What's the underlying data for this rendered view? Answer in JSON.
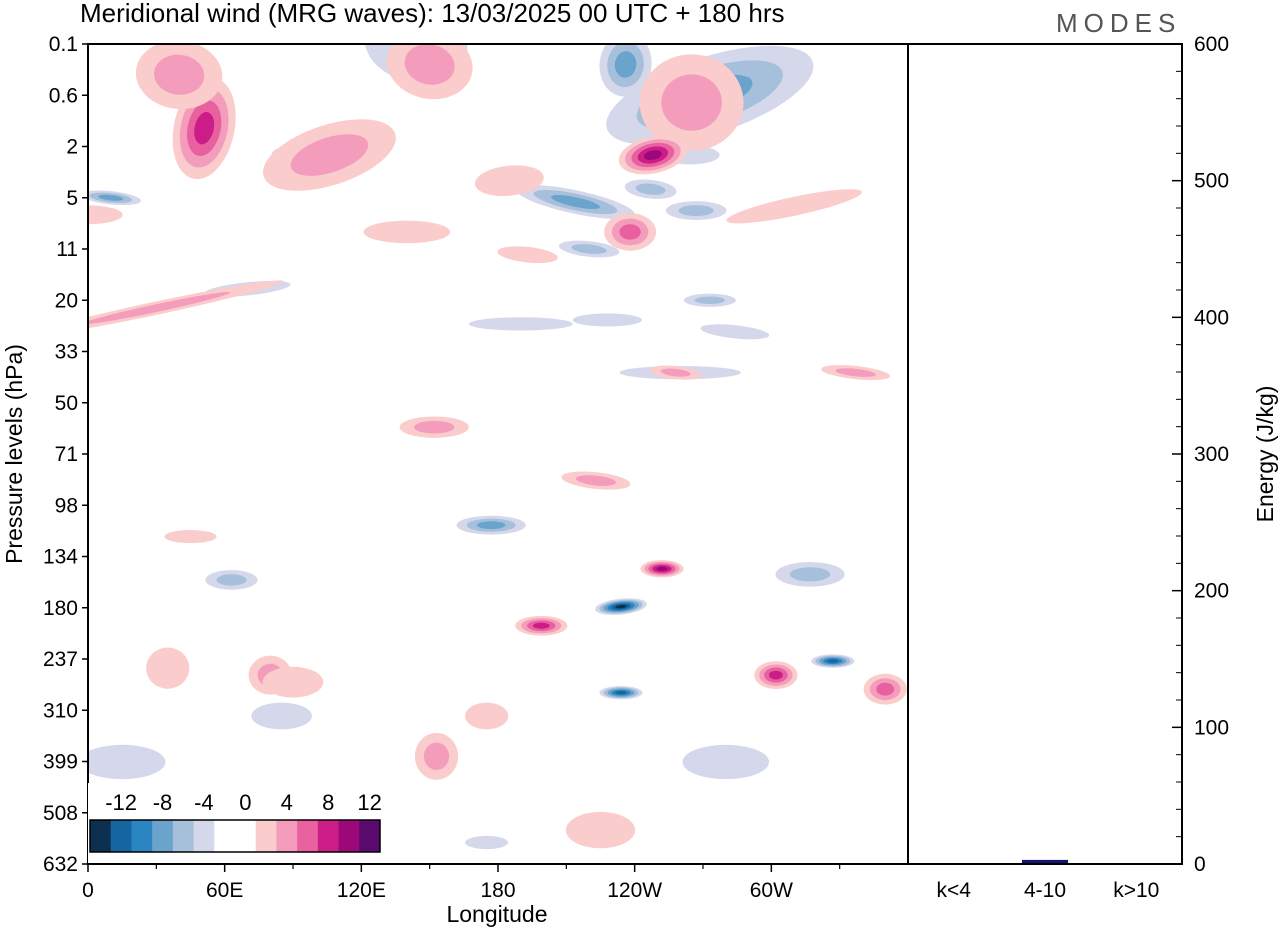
{
  "header": {
    "title": "Meridional wind (MRG waves):  13/03/2025  00 UTC  + 180 hrs",
    "brand": "MODES"
  },
  "colors": {
    "negative": [
      "#0d3050",
      "#1565a0",
      "#2a85c0",
      "#6aa3cc",
      "#a6c0dc",
      "#d5d8ea"
    ],
    "neutral": "#ffffff",
    "positive": [
      "#fbcccc",
      "#f49cbc",
      "#e8609e",
      "#cc1c88",
      "#9c087a",
      "#5a0a6e"
    ],
    "energy_bar": "#141470"
  },
  "chart_data": [
    {
      "type": "heatmap",
      "title": "Meridional wind (MRG waves):  13/03/2025  00 UTC  + 180 hrs",
      "xlabel": "Longitude",
      "ylabel": "Pressure levels (hPa)",
      "x_ticks": [
        "0",
        "60E",
        "120E",
        "180",
        "120W",
        "60W"
      ],
      "x_tick_degrees": [
        0,
        60,
        120,
        180,
        240,
        300
      ],
      "xlim": [
        0,
        360
      ],
      "y_ticks": [
        "0.1",
        "0.6",
        "2",
        "5",
        "11",
        "20",
        "33",
        "50",
        "71",
        "98",
        "134",
        "180",
        "237",
        "310",
        "399",
        "508",
        "632"
      ],
      "colorbar": {
        "labels": [
          "-12",
          "-8",
          "-4",
          "0",
          "4",
          "8",
          "12"
        ],
        "levels": [
          -14,
          -12,
          -10,
          -8,
          -6,
          -4,
          -2,
          2,
          4,
          6,
          8,
          10,
          12,
          14
        ]
      },
      "features": [
        {
          "sign": "neg",
          "level": 6,
          "lon": 273,
          "lev": 0.6,
          "dlon": 25,
          "dlev": 0.5,
          "tilt": -3
        },
        {
          "sign": "neg",
          "level": 6,
          "lon": 10,
          "lev": 5,
          "dlon": 7,
          "dlev": 0.4,
          "tilt": 1
        },
        {
          "sign": "neg",
          "level": 5,
          "lon": 236,
          "lev": 0.3,
          "dlon": 6,
          "dlev": 0.5,
          "tilt": 1
        },
        {
          "sign": "neg",
          "level": 3,
          "lon": 90,
          "lev": 2.5,
          "dlon": 5,
          "dlev": 0.5,
          "tilt": 0
        },
        {
          "sign": "neg",
          "level": 2,
          "lon": 144,
          "lev": 0.1,
          "dlon": 12,
          "dlev": 1,
          "tilt": 2
        },
        {
          "sign": "neg",
          "level": 5,
          "lon": 214,
          "lev": 5.5,
          "dlon": 14,
          "dlev": 1,
          "tilt": 2
        },
        {
          "sign": "neg",
          "level": 4,
          "lon": 247,
          "lev": 4.5,
          "dlon": 6,
          "dlev": 0.5,
          "tilt": 1
        },
        {
          "sign": "neg",
          "level": 4,
          "lon": 267,
          "lev": 6.5,
          "dlon": 7,
          "dlev": 1,
          "tilt": 0
        },
        {
          "sign": "neg",
          "level": 3,
          "lon": 220,
          "lev": 11,
          "dlon": 7,
          "dlev": 1,
          "tilt": 1
        },
        {
          "sign": "neg",
          "level": 1,
          "lon": 264,
          "lev": 2.5,
          "dlon": 7,
          "dlev": 0.5,
          "tilt": 0
        },
        {
          "sign": "neg",
          "level": 3,
          "lon": 273,
          "lev": 20,
          "dlon": 6,
          "dlev": 0.5,
          "tilt": 0
        },
        {
          "sign": "neg",
          "level": 2,
          "lon": 284,
          "lev": 28,
          "dlon": 8,
          "dlev": 0.7,
          "tilt": 1
        },
        {
          "sign": "neg",
          "level": 2,
          "lon": 228,
          "lev": 25,
          "dlon": 8,
          "dlev": 0.7,
          "tilt": 0
        },
        {
          "sign": "neg",
          "level": 1,
          "lon": 260,
          "lev": 40,
          "dlon": 14,
          "dlev": 2,
          "tilt": 0
        },
        {
          "sign": "neg",
          "level": 1,
          "lon": 190,
          "lev": 26,
          "dlon": 12,
          "dlev": 1,
          "tilt": 0
        },
        {
          "sign": "neg",
          "level": 1,
          "lon": 70,
          "lev": 18,
          "dlon": 10,
          "dlev": 1,
          "tilt": -1
        },
        {
          "sign": "neg",
          "level": 5,
          "lon": 177,
          "lev": 112,
          "dlon": 8,
          "dlev": 6,
          "tilt": 0
        },
        {
          "sign": "neg",
          "level": 12,
          "lon": 234,
          "lev": 179,
          "dlon": 6,
          "dlev": 7,
          "tilt": -1
        },
        {
          "sign": "neg",
          "level": 10,
          "lon": 234,
          "lev": 285,
          "dlon": 5,
          "dlev": 4,
          "tilt": 0
        },
        {
          "sign": "neg",
          "level": 10,
          "lon": 327,
          "lev": 240,
          "dlon": 5,
          "dlev": 8,
          "tilt": 0
        },
        {
          "sign": "neg",
          "level": 3,
          "lon": 317,
          "lev": 150,
          "dlon": 8,
          "dlev": 10,
          "tilt": 0
        },
        {
          "sign": "neg",
          "level": 3,
          "lon": 63,
          "lev": 155,
          "dlon": 6,
          "dlev": 8,
          "tilt": 0
        },
        {
          "sign": "neg",
          "level": 2,
          "lon": 15,
          "lev": 400,
          "dlon": 10,
          "dlev": 30,
          "tilt": 0
        },
        {
          "sign": "neg",
          "level": 1,
          "lon": 85,
          "lev": 320,
          "dlon": 7,
          "dlev": 20,
          "tilt": 0
        },
        {
          "sign": "neg",
          "level": 1,
          "lon": 280,
          "lev": 400,
          "dlon": 10,
          "dlev": 30,
          "tilt": 0
        },
        {
          "sign": "neg",
          "level": 1,
          "lon": 175,
          "lev": 580,
          "dlon": 5,
          "dlev": 4,
          "tilt": 0
        },
        {
          "sign": "pos",
          "level": 8,
          "lon": 51,
          "lev": 1.5,
          "dlon": 7,
          "dlev": 1.2,
          "tilt": 2
        },
        {
          "sign": "pos",
          "level": 3,
          "lon": 106,
          "lev": 2.5,
          "dlon": 16,
          "dlev": 1.2,
          "tilt": -3
        },
        {
          "sign": "pos",
          "level": 3,
          "lon": 40,
          "lev": 0.4,
          "dlon": 10,
          "dlev": 0.5,
          "tilt": 1
        },
        {
          "sign": "pos",
          "level": 3,
          "lon": 265,
          "lev": 0.8,
          "dlon": 12,
          "dlev": 0.8,
          "tilt": 0
        },
        {
          "sign": "pos",
          "level": 4,
          "lon": 150,
          "lev": 0.3,
          "dlon": 10,
          "dlev": 0.6,
          "tilt": 2
        },
        {
          "sign": "pos",
          "level": 9,
          "lon": 248,
          "lev": 2.5,
          "dlon": 8,
          "dlev": 0.8,
          "tilt": -2
        },
        {
          "sign": "pos",
          "level": 5,
          "lon": 238,
          "lev": 9,
          "dlon": 6,
          "dlev": 2,
          "tilt": 0
        },
        {
          "sign": "pos",
          "level": 2,
          "lon": 310,
          "lev": 6,
          "dlon": 16,
          "dlev": 1,
          "tilt": -2
        },
        {
          "sign": "pos",
          "level": 2,
          "lon": 185,
          "lev": 4,
          "dlon": 8,
          "dlev": 0.8,
          "tilt": -1
        },
        {
          "sign": "pos",
          "level": 2,
          "lon": 193,
          "lev": 12,
          "dlon": 7,
          "dlev": 1.2,
          "tilt": 1
        },
        {
          "sign": "pos",
          "level": 1,
          "lon": 140,
          "lev": 9,
          "dlon": 10,
          "dlev": 1.2,
          "tilt": 0
        },
        {
          "sign": "pos",
          "level": 1,
          "lon": 0,
          "lev": 7,
          "dlon": 8,
          "dlev": 1,
          "tilt": 0
        },
        {
          "sign": "pos",
          "level": 4,
          "lon": 30,
          "lev": 22,
          "dlon": 30,
          "dlev": 0.5,
          "tilt": -2
        },
        {
          "sign": "pos",
          "level": 4,
          "lon": 258,
          "lev": 40,
          "dlon": 6,
          "dlev": 1.5,
          "tilt": 1
        },
        {
          "sign": "pos",
          "level": 4,
          "lon": 337,
          "lev": 40,
          "dlon": 8,
          "dlev": 1.2,
          "tilt": 1
        },
        {
          "sign": "pos",
          "level": 3,
          "lon": 152,
          "lev": 60,
          "dlon": 8,
          "dlev": 4,
          "tilt": 0
        },
        {
          "sign": "pos",
          "level": 3,
          "lon": 223,
          "lev": 85,
          "dlon": 8,
          "dlev": 4,
          "tilt": 1
        },
        {
          "sign": "pos",
          "level": 7,
          "lon": 199,
          "lev": 200,
          "dlon": 6,
          "dlev": 10,
          "tilt": 0
        },
        {
          "sign": "pos",
          "level": 9,
          "lon": 252,
          "lev": 145,
          "dlon": 5,
          "dlev": 7,
          "tilt": 0
        },
        {
          "sign": "pos",
          "level": 8,
          "lon": 302,
          "lev": 260,
          "dlon": 5,
          "dlev": 18,
          "tilt": 0
        },
        {
          "sign": "pos",
          "level": 5,
          "lon": 350,
          "lev": 280,
          "dlon": 5,
          "dlev": 20,
          "tilt": 0
        },
        {
          "sign": "pos",
          "level": 4,
          "lon": 153,
          "lev": 390,
          "dlon": 5,
          "dlev": 40,
          "tilt": 0
        },
        {
          "sign": "pos",
          "level": 3,
          "lon": 80,
          "lev": 260,
          "dlon": 5,
          "dlev": 25,
          "tilt": 0
        },
        {
          "sign": "pos",
          "level": 2,
          "lon": 45,
          "lev": 120,
          "dlon": 6,
          "dlev": 4,
          "tilt": 0
        },
        {
          "sign": "pos",
          "level": 2,
          "lon": 90,
          "lev": 270,
          "dlon": 7,
          "dlev": 20,
          "tilt": 0
        },
        {
          "sign": "pos",
          "level": 2,
          "lon": 35,
          "lev": 250,
          "dlon": 5,
          "dlev": 25,
          "tilt": 0
        },
        {
          "sign": "pos",
          "level": 2,
          "lon": 175,
          "lev": 320,
          "dlon": 5,
          "dlev": 20,
          "tilt": 0
        },
        {
          "sign": "pos",
          "level": 1,
          "lon": 225,
          "lev": 550,
          "dlon": 8,
          "dlev": 40,
          "tilt": 0
        }
      ]
    },
    {
      "type": "bar",
      "categories": [
        "k<4",
        "4-10",
        "k>10"
      ],
      "values": [
        0.5,
        3,
        0.3
      ],
      "ylabel": "Energy (J/kg)",
      "ylim": [
        0,
        600
      ],
      "y_ticks": [
        "0",
        "100",
        "200",
        "300",
        "400",
        "500",
        "600"
      ]
    }
  ]
}
